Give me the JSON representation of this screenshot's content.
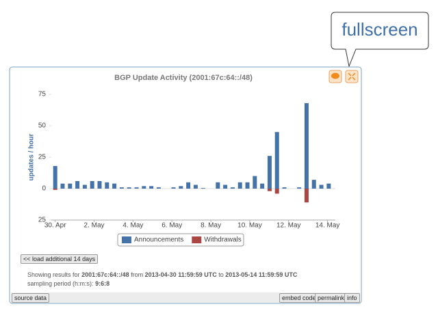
{
  "callout": {
    "label": "fullscreen"
  },
  "chart_data": {
    "type": "bar",
    "title": "BGP Update Activity (2001:67c:64::/48)",
    "y_label": "updates / hour",
    "x": [
      0,
      0.38,
      0.76,
      1.14,
      1.52,
      1.9,
      2.28,
      2.66,
      3.04,
      3.42,
      3.8,
      4.18,
      4.56,
      4.94,
      5.32,
      5.7,
      6.08,
      6.46,
      6.84,
      7.22,
      7.6,
      7.98,
      8.36,
      8.74,
      9.12,
      9.5,
      9.88,
      10.26,
      10.64,
      11.02,
      11.4,
      11.78,
      12.16,
      12.54,
      12.92,
      13.3,
      13.68,
      14.06
    ],
    "series": [
      {
        "name": "Announcements",
        "color": "#4572a7",
        "values": [
          18,
          4,
          4,
          6,
          3,
          6,
          6,
          5,
          4,
          1,
          1,
          1,
          2,
          2,
          1,
          0,
          1,
          2,
          5,
          3,
          0.5,
          0,
          5,
          3,
          1,
          5,
          5,
          10,
          4,
          26,
          45,
          1,
          0,
          1,
          68,
          7,
          3,
          4
        ]
      },
      {
        "name": "Withdrawals",
        "color": "#aa4643",
        "values": [
          -1,
          0,
          0,
          0,
          0,
          0,
          0,
          0,
          0,
          0,
          0,
          0,
          0,
          0,
          0,
          0,
          0,
          0,
          0,
          0,
          0,
          0,
          0,
          0,
          0,
          0,
          0,
          0,
          0,
          -2,
          -4,
          0,
          0,
          0,
          -11,
          0,
          0,
          0
        ]
      }
    ],
    "xlim": [
      -0.2,
      14.4
    ],
    "xticks": [
      {
        "value": 0,
        "label": "30. Apr"
      },
      {
        "value": 2,
        "label": "2. May"
      },
      {
        "value": 4,
        "label": "4. May"
      },
      {
        "value": 6,
        "label": "6. May"
      },
      {
        "value": 8,
        "label": "8. May"
      },
      {
        "value": 10,
        "label": "10. May"
      },
      {
        "value": 12,
        "label": "12. May"
      },
      {
        "value": 14,
        "label": "14. May"
      }
    ],
    "ylim": [
      -25,
      75
    ],
    "yticks": [
      {
        "value": -25,
        "label": "25"
      },
      0,
      25,
      50,
      75
    ],
    "grid": false
  },
  "controls": {
    "load_button": "<< load additional 14 days"
  },
  "info": {
    "showing": "Showing results for",
    "prefix": "2001:67c:64::/48",
    "from": "from",
    "start": "2013-04-30 11:59:59 UTC",
    "to": "to",
    "end": "2013-05-14 11:59:59 UTC",
    "sampling": "sampling period (h:m:s):",
    "period": "9:6:8"
  },
  "footer": {
    "source": "source data",
    "embed": "embed code",
    "permalink": "permalink",
    "info": "info"
  }
}
